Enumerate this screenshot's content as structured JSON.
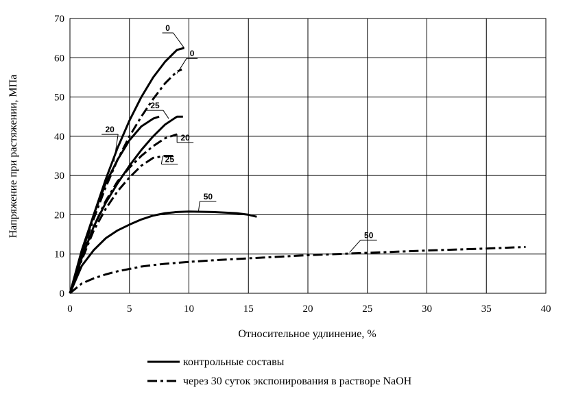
{
  "chart_data": {
    "type": "line",
    "xlabel": "Относительное удлинение, %",
    "ylabel": "Напряжение при растяжении, МПа",
    "xlim": [
      0,
      40
    ],
    "ylim": [
      0,
      70
    ],
    "x_ticks": [
      "0",
      "5",
      "10",
      "15",
      "20",
      "25",
      "30",
      "35",
      "40"
    ],
    "y_ticks": [
      "0",
      "10",
      "20",
      "30",
      "40",
      "50",
      "60",
      "70"
    ],
    "grid": true,
    "legend_position": "bottom",
    "legend": [
      {
        "style": "solid",
        "label": "контрольные составы"
      },
      {
        "style": "dashdot",
        "label": "через 30 суток экспонирования в растворе NaOH"
      }
    ],
    "series": [
      {
        "label": "0",
        "style": "solid",
        "points": [
          [
            0,
            0
          ],
          [
            1,
            10
          ],
          [
            2,
            20
          ],
          [
            3,
            29
          ],
          [
            4,
            37
          ],
          [
            5,
            44
          ],
          [
            6,
            50
          ],
          [
            7,
            55
          ],
          [
            8,
            59
          ],
          [
            9,
            62
          ],
          [
            9.6,
            62.5
          ]
        ]
      },
      {
        "label": "20",
        "style": "solid",
        "points": [
          [
            0,
            0
          ],
          [
            1,
            11
          ],
          [
            2,
            20
          ],
          [
            3,
            28
          ],
          [
            4,
            34
          ],
          [
            5,
            39
          ],
          [
            6,
            42.5
          ],
          [
            7,
            44.5
          ],
          [
            7.5,
            45
          ]
        ]
      },
      {
        "label": "25",
        "style": "solid",
        "points": [
          [
            0,
            0
          ],
          [
            1,
            9
          ],
          [
            2,
            17
          ],
          [
            3,
            23
          ],
          [
            4,
            28
          ],
          [
            5,
            32.5
          ],
          [
            6,
            36.5
          ],
          [
            7,
            40
          ],
          [
            8,
            43
          ],
          [
            9,
            45
          ],
          [
            9.5,
            45
          ]
        ]
      },
      {
        "label": "50",
        "style": "solid",
        "points": [
          [
            0,
            0
          ],
          [
            1,
            7
          ],
          [
            2,
            11
          ],
          [
            3,
            14
          ],
          [
            4,
            16
          ],
          [
            5,
            17.5
          ],
          [
            6,
            18.8
          ],
          [
            7,
            19.8
          ],
          [
            8,
            20.4
          ],
          [
            9,
            20.7
          ],
          [
            10,
            20.8
          ],
          [
            12,
            20.7
          ],
          [
            14,
            20.4
          ],
          [
            15,
            20
          ],
          [
            15.7,
            19.5
          ]
        ]
      },
      {
        "label": "0",
        "style": "dashdot",
        "points": [
          [
            0,
            0
          ],
          [
            1,
            10
          ],
          [
            2,
            19
          ],
          [
            3,
            27
          ],
          [
            4,
            34
          ],
          [
            5,
            40
          ],
          [
            6,
            45
          ],
          [
            7,
            49.5
          ],
          [
            8,
            53.5
          ],
          [
            9,
            56.5
          ],
          [
            9.4,
            57
          ]
        ]
      },
      {
        "label": "20",
        "style": "dashdot",
        "points": [
          [
            0,
            0
          ],
          [
            1,
            9
          ],
          [
            2,
            17
          ],
          [
            3,
            23.5
          ],
          [
            4,
            28.5
          ],
          [
            5,
            32
          ],
          [
            6,
            35
          ],
          [
            7,
            37.5
          ],
          [
            8,
            39.5
          ],
          [
            9,
            40.5
          ]
        ]
      },
      {
        "label": "25",
        "style": "dashdot",
        "points": [
          [
            0,
            0
          ],
          [
            1,
            8.5
          ],
          [
            2,
            16
          ],
          [
            3,
            21.5
          ],
          [
            4,
            26
          ],
          [
            5,
            29.5
          ],
          [
            6,
            32.5
          ],
          [
            7,
            34.5
          ],
          [
            8,
            35
          ],
          [
            8.8,
            35
          ]
        ]
      },
      {
        "label": "50",
        "style": "dashdot",
        "points": [
          [
            0,
            0
          ],
          [
            1,
            2.5
          ],
          [
            2,
            3.8
          ],
          [
            3,
            4.8
          ],
          [
            4,
            5.6
          ],
          [
            5,
            6.2
          ],
          [
            6,
            6.8
          ],
          [
            7,
            7.2
          ],
          [
            8,
            7.5
          ],
          [
            10,
            8
          ],
          [
            12,
            8.4
          ],
          [
            15,
            8.9
          ],
          [
            20,
            9.7
          ],
          [
            25,
            10.3
          ],
          [
            30,
            10.9
          ],
          [
            35,
            11.4
          ],
          [
            38.3,
            11.8
          ]
        ]
      }
    ],
    "curve_labels": [
      {
        "text": "0",
        "anchor": [
          9.6,
          62.5
        ]
      },
      {
        "text": "0",
        "anchor": [
          9.0,
          56.0
        ]
      },
      {
        "text": "25",
        "anchor": [
          8.3,
          44.5
        ]
      },
      {
        "text": "20",
        "anchor": [
          3.7,
          33.5
        ]
      },
      {
        "text": "20",
        "anchor": [
          9.0,
          40.5
        ]
      },
      {
        "text": "25",
        "anchor": [
          7.8,
          35.0
        ]
      },
      {
        "text": "50",
        "anchor": [
          10.8,
          20.8
        ]
      },
      {
        "text": "50",
        "anchor": [
          23.5,
          10.4
        ]
      }
    ]
  }
}
